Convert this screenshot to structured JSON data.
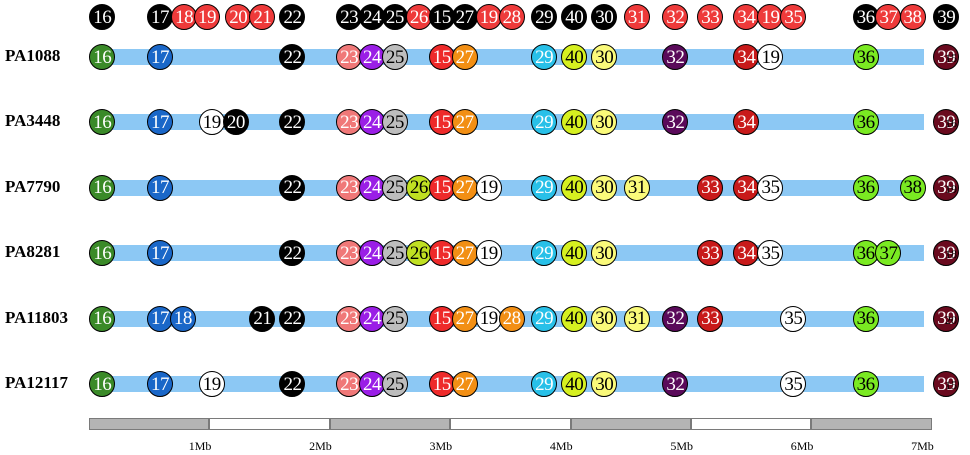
{
  "colors": {
    "track": "#8cc8f4",
    "scale_filled": "#b4b4b4",
    "scale_empty": "#ffffff",
    "marker_text_light": "#ffffff",
    "marker_text_dark": "#000000",
    "palette": {
      "16": "#3a8a28",
      "17": "#1a67c8",
      "18": "#1a67c8",
      "19": "#ffffff",
      "20": "#000000",
      "21": "#000000",
      "22": "#000000",
      "23": "#f07878",
      "24": "#9a1ee6",
      "25": "#bdbdbd",
      "26": "#c0e022",
      "15": "#ee2a2a",
      "27": "#f28f14",
      "28": "#f28f14",
      "29": "#28c0e8",
      "40": "#d6f020",
      "30": "#fafa7a",
      "31": "#fafa7a",
      "32": "#5a0a5a",
      "33": "#c81a1a",
      "34": "#c81a1a",
      "35": "#ffffff",
      "36": "#7aea22",
      "37": "#7aea22",
      "38": "#7aea22",
      "39": "#6a0a1e"
    },
    "reference_red": "#ee3a3a",
    "reference_black": "#000000"
  },
  "reference_row": {
    "markers": [
      {
        "label": "16",
        "mb": 0.11,
        "tone": "black"
      },
      {
        "label": "17",
        "mb": 0.59,
        "tone": "black"
      },
      {
        "label": "18",
        "mb": 0.79,
        "tone": "red"
      },
      {
        "label": "19",
        "mb": 0.98,
        "tone": "red"
      },
      {
        "label": "20",
        "mb": 1.24,
        "tone": "red"
      },
      {
        "label": "21",
        "mb": 1.44,
        "tone": "red"
      },
      {
        "label": "22",
        "mb": 1.69,
        "tone": "black"
      },
      {
        "label": "23",
        "mb": 2.16,
        "tone": "black"
      },
      {
        "label": "24",
        "mb": 2.35,
        "tone": "black"
      },
      {
        "label": "25",
        "mb": 2.54,
        "tone": "black"
      },
      {
        "label": "26",
        "mb": 2.74,
        "tone": "red"
      },
      {
        "label": "15",
        "mb": 2.93,
        "tone": "black"
      },
      {
        "label": "27",
        "mb": 3.12,
        "tone": "black"
      },
      {
        "label": "19",
        "mb": 3.32,
        "tone": "red"
      },
      {
        "label": "28",
        "mb": 3.51,
        "tone": "red"
      },
      {
        "label": "29",
        "mb": 3.78,
        "tone": "black"
      },
      {
        "label": "40",
        "mb": 4.03,
        "tone": "black"
      },
      {
        "label": "30",
        "mb": 4.28,
        "tone": "black"
      },
      {
        "label": "31",
        "mb": 4.55,
        "tone": "red"
      },
      {
        "label": "32",
        "mb": 4.87,
        "tone": "red"
      },
      {
        "label": "33",
        "mb": 5.16,
        "tone": "red"
      },
      {
        "label": "34",
        "mb": 5.46,
        "tone": "red"
      },
      {
        "label": "19",
        "mb": 5.66,
        "tone": "red"
      },
      {
        "label": "35",
        "mb": 5.85,
        "tone": "red"
      },
      {
        "label": "36",
        "mb": 6.45,
        "tone": "black"
      },
      {
        "label": "37",
        "mb": 6.64,
        "tone": "red"
      },
      {
        "label": "38",
        "mb": 6.84,
        "tone": "red"
      },
      {
        "label": "39",
        "mb": 7.12,
        "tone": "black"
      }
    ]
  },
  "strains": [
    {
      "name": "PA1088",
      "count": "15",
      "markers": [
        {
          "label": "16",
          "mb": 0.11
        },
        {
          "label": "17",
          "mb": 0.59
        },
        {
          "label": "22",
          "mb": 1.69
        },
        {
          "label": "23",
          "mb": 2.16
        },
        {
          "label": "24",
          "mb": 2.35
        },
        {
          "label": "25",
          "mb": 2.54
        },
        {
          "label": "15",
          "mb": 2.93
        },
        {
          "label": "27",
          "mb": 3.12
        },
        {
          "label": "29",
          "mb": 3.78
        },
        {
          "label": "40",
          "mb": 4.03
        },
        {
          "label": "30",
          "mb": 4.28
        },
        {
          "label": "32",
          "mb": 4.87
        },
        {
          "label": "34",
          "mb": 5.46
        },
        {
          "label": "19",
          "mb": 5.66
        },
        {
          "label": "36",
          "mb": 6.45
        },
        {
          "label": "39",
          "mb": 7.12
        }
      ]
    },
    {
      "name": "PA3448",
      "count": "16",
      "markers": [
        {
          "label": "16",
          "mb": 0.11
        },
        {
          "label": "17",
          "mb": 0.59
        },
        {
          "label": "19",
          "mb": 1.02
        },
        {
          "label": "20",
          "mb": 1.22
        },
        {
          "label": "22",
          "mb": 1.69
        },
        {
          "label": "23",
          "mb": 2.16
        },
        {
          "label": "24",
          "mb": 2.35
        },
        {
          "label": "25",
          "mb": 2.54
        },
        {
          "label": "15",
          "mb": 2.93
        },
        {
          "label": "27",
          "mb": 3.12
        },
        {
          "label": "29",
          "mb": 3.78
        },
        {
          "label": "40",
          "mb": 4.03
        },
        {
          "label": "30",
          "mb": 4.28
        },
        {
          "label": "32",
          "mb": 4.87
        },
        {
          "label": "34",
          "mb": 5.46
        },
        {
          "label": "36",
          "mb": 6.45
        },
        {
          "label": "39",
          "mb": 7.12
        }
      ]
    },
    {
      "name": "PA7790",
      "count": "19",
      "markers": [
        {
          "label": "16",
          "mb": 0.11
        },
        {
          "label": "17",
          "mb": 0.59
        },
        {
          "label": "22",
          "mb": 1.69
        },
        {
          "label": "23",
          "mb": 2.16
        },
        {
          "label": "24",
          "mb": 2.35
        },
        {
          "label": "25",
          "mb": 2.54
        },
        {
          "label": "26",
          "mb": 2.74
        },
        {
          "label": "15",
          "mb": 2.93
        },
        {
          "label": "27",
          "mb": 3.12
        },
        {
          "label": "19",
          "mb": 3.32
        },
        {
          "label": "29",
          "mb": 3.78
        },
        {
          "label": "40",
          "mb": 4.03
        },
        {
          "label": "30",
          "mb": 4.28
        },
        {
          "label": "31",
          "mb": 4.55
        },
        {
          "label": "33",
          "mb": 5.16
        },
        {
          "label": "34",
          "mb": 5.46
        },
        {
          "label": "35",
          "mb": 5.66
        },
        {
          "label": "36",
          "mb": 6.45
        },
        {
          "label": "38",
          "mb": 6.84
        },
        {
          "label": "39",
          "mb": 7.12
        }
      ]
    },
    {
      "name": "PA8281",
      "count": "18",
      "markers": [
        {
          "label": "16",
          "mb": 0.11
        },
        {
          "label": "17",
          "mb": 0.59
        },
        {
          "label": "22",
          "mb": 1.69
        },
        {
          "label": "23",
          "mb": 2.16
        },
        {
          "label": "24",
          "mb": 2.35
        },
        {
          "label": "25",
          "mb": 2.54
        },
        {
          "label": "26",
          "mb": 2.74
        },
        {
          "label": "15",
          "mb": 2.93
        },
        {
          "label": "27",
          "mb": 3.12
        },
        {
          "label": "19",
          "mb": 3.32
        },
        {
          "label": "29",
          "mb": 3.78
        },
        {
          "label": "40",
          "mb": 4.03
        },
        {
          "label": "30",
          "mb": 4.28
        },
        {
          "label": "33",
          "mb": 5.16
        },
        {
          "label": "34",
          "mb": 5.46
        },
        {
          "label": "35",
          "mb": 5.66
        },
        {
          "label": "36",
          "mb": 6.45
        },
        {
          "label": "37",
          "mb": 6.64
        },
        {
          "label": "39",
          "mb": 7.12
        }
      ]
    },
    {
      "name": "PA11803",
      "count": "20",
      "markers": [
        {
          "label": "16",
          "mb": 0.11
        },
        {
          "label": "17",
          "mb": 0.59
        },
        {
          "label": "18",
          "mb": 0.78
        },
        {
          "label": "21",
          "mb": 1.44
        },
        {
          "label": "22",
          "mb": 1.69
        },
        {
          "label": "23",
          "mb": 2.16
        },
        {
          "label": "24",
          "mb": 2.35
        },
        {
          "label": "25",
          "mb": 2.54
        },
        {
          "label": "15",
          "mb": 2.93
        },
        {
          "label": "27",
          "mb": 3.12
        },
        {
          "label": "19",
          "mb": 3.32
        },
        {
          "label": "28",
          "mb": 3.51
        },
        {
          "label": "29",
          "mb": 3.78
        },
        {
          "label": "40",
          "mb": 4.03
        },
        {
          "label": "30",
          "mb": 4.28
        },
        {
          "label": "31",
          "mb": 4.55
        },
        {
          "label": "32",
          "mb": 4.87
        },
        {
          "label": "33",
          "mb": 5.16
        },
        {
          "label": "35",
          "mb": 5.85
        },
        {
          "label": "36",
          "mb": 6.45
        },
        {
          "label": "39",
          "mb": 7.12
        }
      ]
    },
    {
      "name": "PA12117",
      "count": "15",
      "markers": [
        {
          "label": "16",
          "mb": 0.11
        },
        {
          "label": "17",
          "mb": 0.59
        },
        {
          "label": "19",
          "mb": 1.02
        },
        {
          "label": "22",
          "mb": 1.69
        },
        {
          "label": "23",
          "mb": 2.16
        },
        {
          "label": "24",
          "mb": 2.35
        },
        {
          "label": "25",
          "mb": 2.54
        },
        {
          "label": "15",
          "mb": 2.93
        },
        {
          "label": "27",
          "mb": 3.12
        },
        {
          "label": "29",
          "mb": 3.78
        },
        {
          "label": "40",
          "mb": 4.03
        },
        {
          "label": "30",
          "mb": 4.28
        },
        {
          "label": "32",
          "mb": 4.87
        },
        {
          "label": "35",
          "mb": 5.85
        },
        {
          "label": "36",
          "mb": 6.45
        },
        {
          "label": "39",
          "mb": 7.12
        }
      ]
    }
  ],
  "scale_bar": {
    "segments": [
      {
        "start_mb": 0,
        "end_mb": 1,
        "fill": "filled"
      },
      {
        "start_mb": 1,
        "end_mb": 2,
        "fill": "empty"
      },
      {
        "start_mb": 2,
        "end_mb": 3,
        "fill": "filled"
      },
      {
        "start_mb": 3,
        "end_mb": 4,
        "fill": "empty"
      },
      {
        "start_mb": 4,
        "end_mb": 5,
        "fill": "filled"
      },
      {
        "start_mb": 5,
        "end_mb": 6,
        "fill": "empty"
      },
      {
        "start_mb": 6,
        "end_mb": 7,
        "fill": "filled"
      }
    ],
    "labels": [
      {
        "text": "1Mb",
        "mb": 1
      },
      {
        "text": "2Mb",
        "mb": 2
      },
      {
        "text": "3Mb",
        "mb": 3
      },
      {
        "text": "4Mb",
        "mb": 4
      },
      {
        "text": "5Mb",
        "mb": 5
      },
      {
        "text": "6Mb",
        "mb": 6
      },
      {
        "text": "7Mb",
        "mb": 7
      }
    ]
  }
}
